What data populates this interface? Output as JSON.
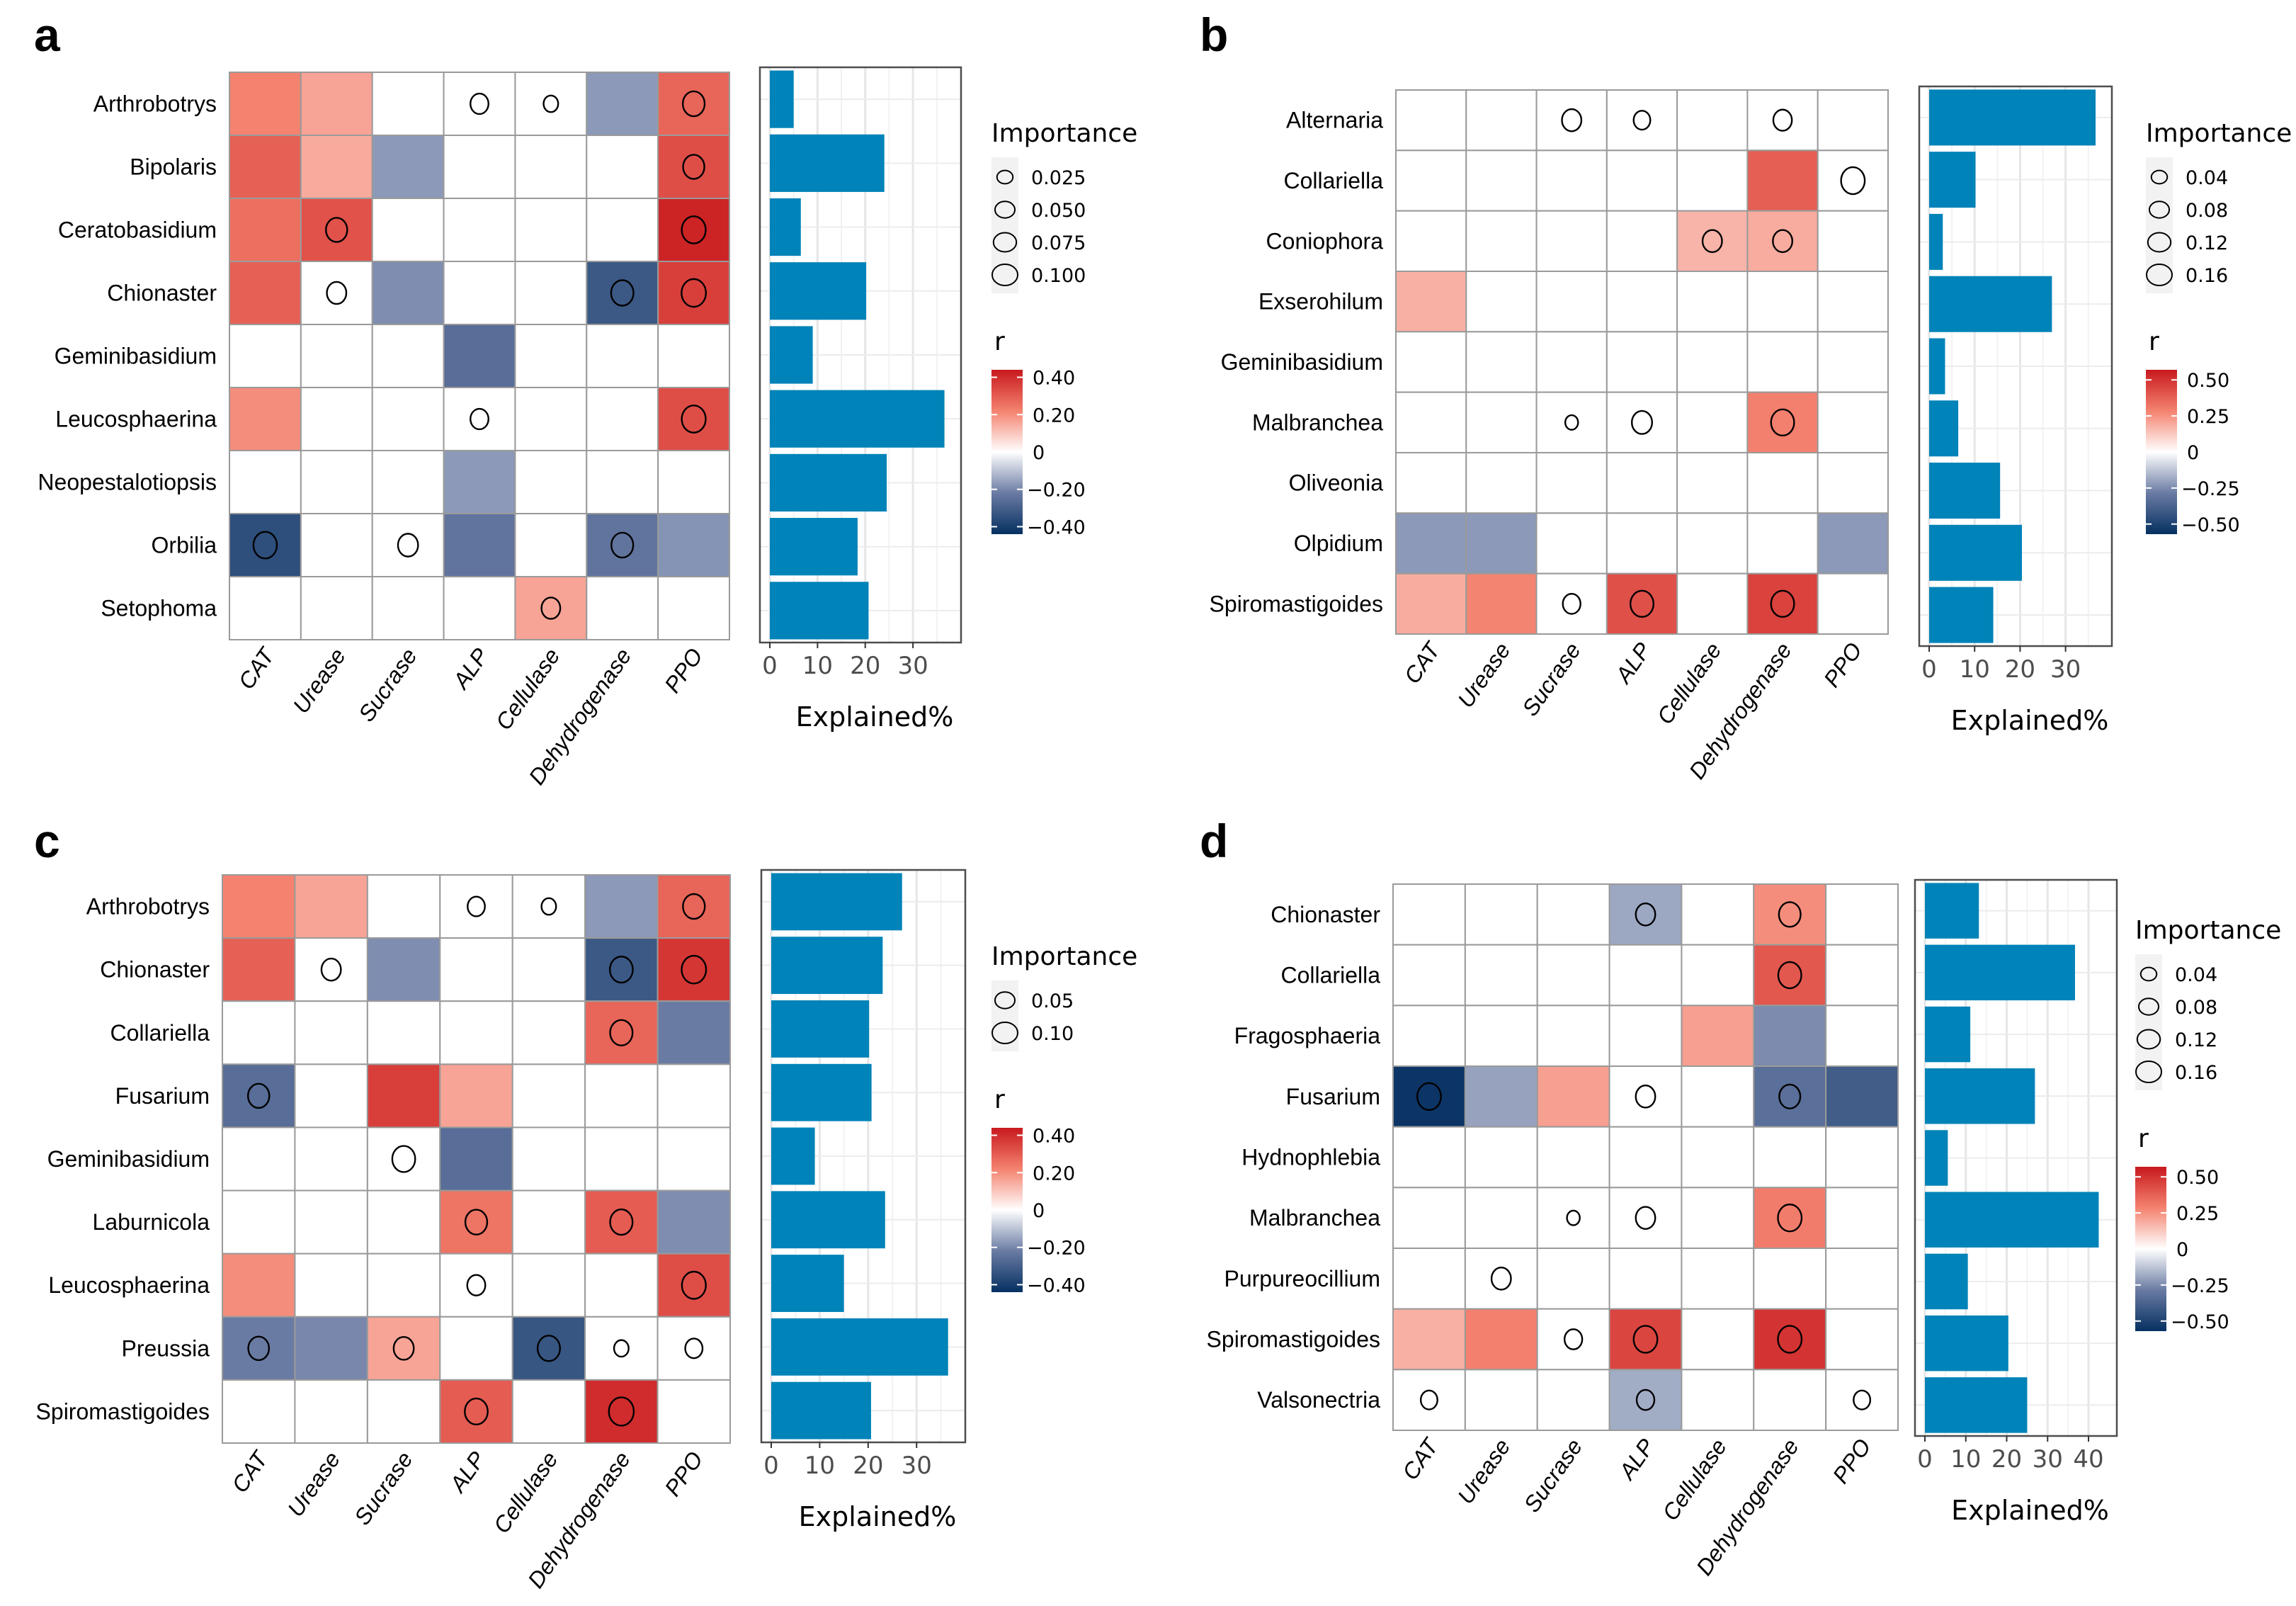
{
  "figure": {
    "description": "Four-panel figure: correlation heatmaps of fungal genera vs soil enzyme activities with random-forest importance circles, plus explained-variance bar charts"
  },
  "chart_data": [
    {
      "panel": "a",
      "type": "heatmap",
      "rows": [
        "Arthrobotrys",
        "Bipolaris",
        "Ceratobasidium",
        "Chionaster",
        "Geminibasidium",
        "Leucosphaerina",
        "Neopestalotiopsis",
        "Orbilia",
        "Setophoma"
      ],
      "columns": [
        "CAT",
        "Urease",
        "Sucrase",
        "ALP",
        "Cellulase",
        "Dehydrogenase",
        "PPO"
      ],
      "r": [
        [
          0.22,
          0.16,
          null,
          null,
          null,
          -0.17,
          0.28
        ],
        [
          0.29,
          0.15,
          -0.17,
          null,
          null,
          null,
          0.33
        ],
        [
          0.26,
          0.32,
          null,
          null,
          null,
          null,
          0.42
        ],
        [
          0.29,
          null,
          -0.19,
          null,
          null,
          -0.32,
          0.36
        ],
        [
          null,
          null,
          null,
          -0.26,
          null,
          null,
          null
        ],
        [
          0.2,
          null,
          null,
          null,
          null,
          null,
          0.33
        ],
        [
          null,
          null,
          null,
          -0.17,
          null,
          null,
          null
        ],
        [
          -0.35,
          null,
          null,
          -0.24,
          null,
          -0.24,
          -0.18
        ],
        [
          null,
          null,
          null,
          null,
          0.16,
          null,
          null
        ]
      ],
      "importance": [
        [
          null,
          null,
          null,
          0.04,
          0.02,
          null,
          0.07
        ],
        [
          null,
          null,
          null,
          null,
          null,
          null,
          0.065
        ],
        [
          null,
          0.065,
          null,
          null,
          null,
          null,
          0.09
        ],
        [
          null,
          0.05,
          null,
          null,
          null,
          0.075,
          0.095
        ],
        [
          null,
          null,
          null,
          null,
          null,
          null,
          null
        ],
        [
          null,
          null,
          null,
          0.04,
          null,
          null,
          0.09
        ],
        [
          null,
          null,
          null,
          null,
          null,
          null,
          null
        ],
        [
          0.085,
          null,
          0.055,
          null,
          null,
          0.07,
          null
        ],
        [
          null,
          null,
          null,
          null,
          0.045,
          null,
          null
        ]
      ],
      "bar": {
        "type": "bar",
        "orientation": "horizontal",
        "values": [
          5.0,
          24.0,
          6.5,
          20.2,
          9.0,
          36.6,
          24.5,
          18.4,
          20.7
        ],
        "xlabel": "Explained%",
        "xlim": [
          0,
          38
        ],
        "xticks": [
          0,
          10,
          20,
          30
        ],
        "color": "#0083b8"
      },
      "size_legend": {
        "title": "Importance",
        "values": [
          0.025,
          0.05,
          0.075,
          0.1
        ],
        "labels": [
          "0.025",
          "0.050",
          "0.075",
          "0.100"
        ]
      },
      "color_legend": {
        "title": "r",
        "limits": [
          -0.44,
          0.44
        ],
        "ticks": [
          0.4,
          0.2,
          0,
          -0.2,
          -0.4
        ],
        "labels": [
          "0.40",
          "0.20",
          "0",
          "−0.20",
          "−0.40"
        ]
      }
    },
    {
      "panel": "b",
      "type": "heatmap",
      "rows": [
        "Alternaria",
        "Collariella",
        "Coniophora",
        "Exserohilum",
        "Geminibasidium",
        "Malbranchea",
        "Oliveonia",
        "Olpidium",
        "Spiromastigoides"
      ],
      "columns": [
        "CAT",
        "Urease",
        "Sucrase",
        "ALP",
        "Cellulase",
        "Dehydrogenase",
        "PPO"
      ],
      "r": [
        [
          null,
          null,
          null,
          null,
          null,
          null,
          null
        ],
        [
          null,
          null,
          null,
          null,
          null,
          0.38,
          null
        ],
        [
          null,
          null,
          null,
          null,
          0.17,
          0.19,
          null
        ],
        [
          0.18,
          null,
          null,
          null,
          null,
          null,
          null
        ],
        [
          null,
          null,
          null,
          null,
          null,
          null,
          null
        ],
        [
          null,
          null,
          null,
          null,
          null,
          0.29,
          null
        ],
        [
          null,
          null,
          null,
          null,
          null,
          null,
          null
        ],
        [
          -0.22,
          -0.22,
          null,
          null,
          null,
          null,
          -0.22
        ],
        [
          0.19,
          0.28,
          null,
          0.42,
          null,
          0.46,
          null
        ]
      ],
      "importance": [
        [
          null,
          null,
          0.08,
          0.05,
          null,
          0.07,
          null
        ],
        [
          null,
          null,
          null,
          null,
          null,
          null,
          0.14
        ],
        [
          null,
          null,
          null,
          null,
          0.08,
          0.08,
          null
        ],
        [
          null,
          null,
          null,
          null,
          null,
          null,
          null
        ],
        [
          null,
          null,
          null,
          null,
          null,
          null,
          null
        ],
        [
          null,
          null,
          0.02,
          0.09,
          null,
          0.13,
          null
        ],
        [
          null,
          null,
          null,
          null,
          null,
          null,
          null
        ],
        [
          null,
          null,
          null,
          null,
          null,
          null,
          null
        ],
        [
          null,
          null,
          0.06,
          0.13,
          null,
          0.13,
          null
        ]
      ],
      "bar": {
        "type": "bar",
        "orientation": "horizontal",
        "values": [
          36.6,
          10.2,
          3.0,
          27.0,
          3.5,
          6.4,
          15.6,
          20.4,
          14.1
        ],
        "xlabel": "Explained%",
        "xlim": [
          0,
          38
        ],
        "xticks": [
          0,
          10,
          20,
          30
        ],
        "color": "#0083b8"
      },
      "size_legend": {
        "title": "Importance",
        "values": [
          0.04,
          0.08,
          0.12,
          0.16
        ],
        "labels": [
          "0.04",
          "0.08",
          "0.12",
          "0.16"
        ]
      },
      "color_legend": {
        "title": "r",
        "limits": [
          -0.57,
          0.57
        ],
        "ticks": [
          0.5,
          0.25,
          0,
          -0.25,
          -0.5
        ],
        "labels": [
          "0.50",
          "0.25",
          "0",
          "−0.25",
          "−0.50"
        ]
      }
    },
    {
      "panel": "c",
      "type": "heatmap",
      "rows": [
        "Arthrobotrys",
        "Chionaster",
        "Collariella",
        "Fusarium",
        "Geminibasidium",
        "Laburnicola",
        "Leucosphaerina",
        "Preussia",
        "Spiromastigoides"
      ],
      "columns": [
        "CAT",
        "Urease",
        "Sucrase",
        "ALP",
        "Cellulase",
        "Dehydrogenase",
        "PPO"
      ],
      "r": [
        [
          0.22,
          0.16,
          null,
          null,
          null,
          -0.17,
          0.28
        ],
        [
          0.29,
          null,
          -0.19,
          null,
          null,
          -0.32,
          0.38
        ],
        [
          null,
          null,
          null,
          null,
          null,
          0.28,
          -0.22
        ],
        [
          -0.26,
          null,
          0.36,
          0.16,
          null,
          null,
          null
        ],
        [
          null,
          null,
          null,
          -0.26,
          null,
          null,
          null
        ],
        [
          null,
          null,
          null,
          0.25,
          null,
          0.3,
          -0.19
        ],
        [
          0.2,
          null,
          null,
          null,
          null,
          null,
          0.33
        ],
        [
          -0.22,
          -0.2,
          0.16,
          null,
          -0.33,
          null,
          null
        ],
        [
          null,
          null,
          null,
          0.3,
          null,
          0.4,
          null
        ]
      ],
      "importance": [
        [
          null,
          null,
          null,
          0.035,
          0.02,
          null,
          0.07
        ],
        [
          null,
          0.05,
          null,
          null,
          null,
          0.08,
          0.095
        ],
        [
          null,
          null,
          null,
          null,
          null,
          0.075,
          null
        ],
        [
          0.065,
          null,
          null,
          null,
          null,
          null,
          null
        ],
        [
          null,
          null,
          0.08,
          null,
          null,
          null,
          null
        ],
        [
          null,
          null,
          null,
          0.07,
          null,
          0.075,
          null
        ],
        [
          null,
          null,
          null,
          0.04,
          null,
          null,
          0.09
        ],
        [
          0.06,
          null,
          0.055,
          null,
          0.075,
          0.02,
          0.035
        ],
        [
          null,
          null,
          null,
          0.08,
          null,
          0.1,
          null
        ]
      ],
      "bar": {
        "type": "bar",
        "orientation": "horizontal",
        "values": [
          27.0,
          23.0,
          20.2,
          20.7,
          9.0,
          23.5,
          15.0,
          36.5,
          20.6
        ],
        "xlabel": "Explained%",
        "xlim": [
          0,
          38
        ],
        "xticks": [
          0,
          10,
          20,
          30
        ],
        "color": "#0083b8"
      },
      "size_legend": {
        "title": "Importance",
        "values": [
          0.05,
          0.1
        ],
        "labels": [
          "0.05",
          "0.10"
        ]
      },
      "color_legend": {
        "title": "r",
        "limits": [
          -0.44,
          0.44
        ],
        "ticks": [
          0.4,
          0.2,
          0,
          -0.2,
          -0.4
        ],
        "labels": [
          "0.40",
          "0.20",
          "0",
          "−0.20",
          "−0.40"
        ]
      }
    },
    {
      "panel": "d",
      "type": "heatmap",
      "rows": [
        "Chionaster",
        "Collariella",
        "Fragosphaeria",
        "Fusarium",
        "Hydnophlebia",
        "Malbranchea",
        "Purpureocillium",
        "Spiromastigoides",
        "Valsonectria"
      ],
      "columns": [
        "CAT",
        "Urease",
        "Sucrase",
        "ALP",
        "Cellulase",
        "Dehydrogenase",
        "PPO"
      ],
      "r": [
        [
          null,
          null,
          null,
          -0.19,
          null,
          0.26,
          null
        ],
        [
          null,
          null,
          null,
          null,
          null,
          0.4,
          null
        ],
        [
          null,
          null,
          null,
          null,
          0.22,
          -0.25,
          null
        ],
        [
          -0.55,
          -0.2,
          0.22,
          null,
          null,
          -0.33,
          -0.4
        ],
        [
          null,
          null,
          null,
          null,
          null,
          null,
          null
        ],
        [
          null,
          null,
          null,
          null,
          null,
          0.3,
          null
        ],
        [
          null,
          null,
          null,
          null,
          null,
          null,
          null
        ],
        [
          0.18,
          0.29,
          null,
          0.45,
          null,
          0.5,
          null
        ],
        [
          null,
          null,
          null,
          -0.18,
          null,
          null,
          null
        ]
      ],
      "importance": [
        [
          null,
          null,
          null,
          0.08,
          null,
          0.11,
          null
        ],
        [
          null,
          null,
          null,
          null,
          null,
          0.13,
          null
        ],
        [
          null,
          null,
          null,
          null,
          null,
          null,
          null
        ],
        [
          0.14,
          null,
          null,
          0.08,
          null,
          0.1,
          null
        ],
        [
          null,
          null,
          null,
          null,
          null,
          null,
          null
        ],
        [
          null,
          null,
          0.02,
          0.08,
          null,
          0.14,
          null
        ],
        [
          null,
          0.08,
          null,
          null,
          null,
          null,
          null
        ],
        [
          null,
          null,
          0.06,
          0.14,
          null,
          0.14,
          null
        ],
        [
          0.05,
          null,
          null,
          0.06,
          null,
          null,
          0.05
        ]
      ],
      "bar": {
        "type": "bar",
        "orientation": "horizontal",
        "values": [
          13.2,
          36.7,
          11.1,
          26.9,
          5.6,
          42.5,
          10.5,
          20.4,
          25.0
        ],
        "xlabel": "Explained%",
        "xlim": [
          0,
          44.5
        ],
        "xticks": [
          0,
          10,
          20,
          30,
          40
        ],
        "color": "#0083b8"
      },
      "size_legend": {
        "title": "Importance",
        "values": [
          0.04,
          0.08,
          0.12,
          0.16
        ],
        "labels": [
          "0.04",
          "0.08",
          "0.12",
          "0.16"
        ]
      },
      "color_legend": {
        "title": "r",
        "limits": [
          -0.57,
          0.57
        ],
        "ticks": [
          0.5,
          0.25,
          0,
          -0.25,
          -0.5
        ],
        "labels": [
          "0.50",
          "0.25",
          "0",
          "−0.25",
          "−0.50"
        ]
      }
    }
  ],
  "palette": {
    "negative": "#053061",
    "mid": "#ffffff",
    "positive": "#b2182b",
    "bar": "#0083b8",
    "grid_line": "#999999"
  }
}
